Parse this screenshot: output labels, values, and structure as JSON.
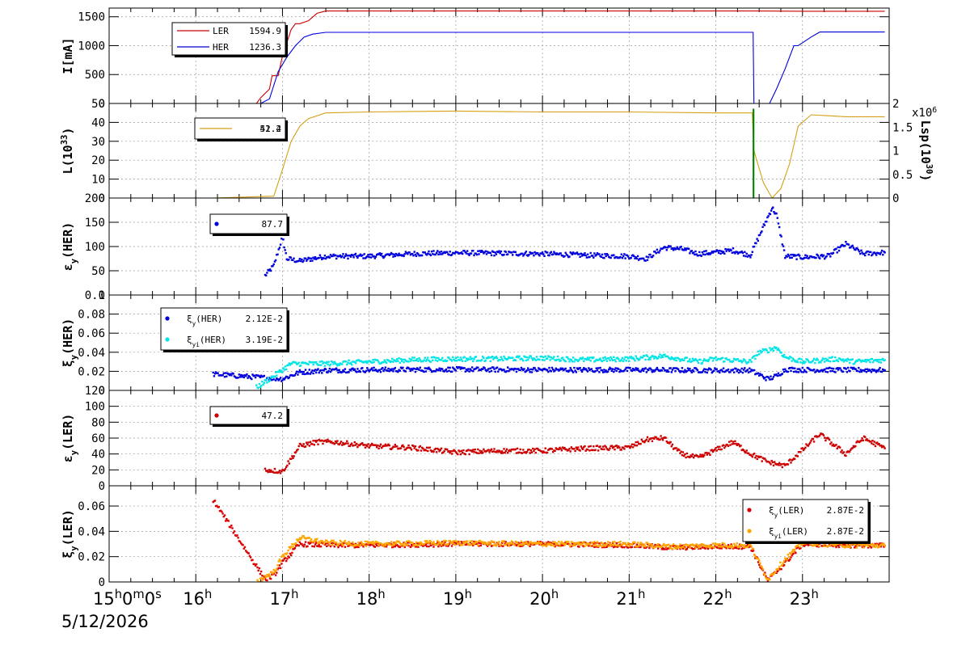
{
  "chart_data": {
    "type": "line",
    "time_axis": {
      "start": "15h0m0s",
      "date": "5/12/2026",
      "x_range_hours": [
        15,
        24
      ],
      "tick_labels": [
        {
          "hour": 15,
          "label": "15",
          "sup": "h",
          "tail": "0",
          "tail_sup": "m",
          "tail2": "0",
          "tail2_sup": "s"
        },
        {
          "hour": 16,
          "label": "16",
          "sup": "h"
        },
        {
          "hour": 17,
          "label": "17",
          "sup": "h"
        },
        {
          "hour": 18,
          "label": "18",
          "sup": "h"
        },
        {
          "hour": 19,
          "label": "19",
          "sup": "h"
        },
        {
          "hour": 20,
          "label": "20",
          "sup": "h"
        },
        {
          "hour": 21,
          "label": "21",
          "sup": "h"
        },
        {
          "hour": 22,
          "label": "22",
          "sup": "h"
        },
        {
          "hour": 23,
          "label": "23",
          "sup": "h"
        }
      ]
    },
    "panels": [
      {
        "id": "current",
        "ylabel": "I[mA]",
        "ylim": [
          0,
          1650
        ],
        "yticks": [
          0,
          500,
          1000,
          1500
        ],
        "legend": [
          {
            "name": "LER",
            "value": "1594.9",
            "color": "#cc0000",
            "marker": "line"
          },
          {
            "name": "HER",
            "value": "1236.3",
            "color": "#0000dd",
            "marker": "line"
          }
        ],
        "series": [
          {
            "name": "LER",
            "color": "#cc0000",
            "style": "line",
            "x": [
              15.0,
              16.7,
              16.75,
              16.85,
              16.88,
              16.95,
              17.0,
              17.05,
              17.1,
              17.15,
              17.2,
              17.3,
              17.4,
              17.5,
              19.0,
              21.0,
              22.45,
              23.0,
              23.95
            ],
            "y": [
              0,
              0,
              100,
              250,
              480,
              480,
              820,
              1050,
              1280,
              1380,
              1380,
              1430,
              1560,
              1600,
              1600,
              1600,
              1600,
              1595,
              1594.9
            ]
          },
          {
            "name": "HER",
            "color": "#0000dd",
            "style": "line",
            "x": [
              15.0,
              16.75,
              16.85,
              16.95,
              17.05,
              17.15,
              17.25,
              17.35,
              17.5,
              19.0,
              21.0,
              22.43,
              22.44,
              22.62,
              22.7,
              22.8,
              22.9,
              22.95,
              23.1,
              23.2,
              23.95
            ],
            "y": [
              0,
              0,
              80,
              550,
              800,
              1000,
              1150,
              1200,
              1230,
              1230,
              1230,
              1230,
              0,
              0,
              250,
              600,
              1000,
              1000,
              1150,
              1236,
              1236.3
            ]
          }
        ]
      },
      {
        "id": "luminosity",
        "ylabel": "L(10",
        "ylabel_sup": "33",
        "ylabel_tail": ")",
        "ylim": [
          0,
          50
        ],
        "yticks": [
          0,
          10,
          20,
          30,
          40,
          50
        ],
        "y2label": "Lsp(10",
        "y2label_sup": "30",
        "y2label_tail": ")",
        "y2lim": [
          0,
          2
        ],
        "y2ticks": [
          "0",
          "0.5",
          "1",
          "1.5",
          "2"
        ],
        "y2multiplier": "x10",
        "y2multiplier_sup": "6",
        "legend": [
          {
            "name": "",
            "value": "51.4",
            "color": "#d4a017",
            "marker": "line"
          },
          {
            "name": "",
            "value": "42.2",
            "color": "#d4a017",
            "marker": "none"
          }
        ],
        "series": [
          {
            "name": "",
            "color": "#d4a017",
            "style": "line",
            "x": [
              16.2,
              16.9,
              17.0,
              17.1,
              17.2,
              17.3,
              17.5,
              18.0,
              19.0,
              20.0,
              21.0,
              22.0,
              22.42,
              22.44,
              22.55,
              22.65,
              22.75,
              22.85,
              22.95,
              23.1,
              23.5,
              23.95
            ],
            "y": [
              0,
              1,
              15,
              30,
              38,
              42,
              45,
              45.5,
              46,
              45.5,
              45.5,
              45,
              45,
              25,
              8,
              0,
              5,
              18,
              38,
              44,
              43,
              43
            ]
          },
          {
            "name": "",
            "color": "#008000",
            "style": "line",
            "x": [
              22.43,
              22.43,
              22.44,
              22.44
            ],
            "y": [
              0,
              47,
              47,
              0
            ]
          }
        ]
      },
      {
        "id": "emittance_her",
        "ylabel": "ε",
        "ylabel_sub": "y",
        "ylabel_tail": "(HER)",
        "ylim": [
          0,
          200
        ],
        "yticks": [
          0,
          50,
          100,
          150,
          200
        ],
        "legend": [
          {
            "name": "",
            "value": "87.7",
            "color": "#0000dd",
            "marker": "dot"
          }
        ],
        "series": [
          {
            "name": "",
            "color": "#0000dd",
            "style": "scatter",
            "x": [
              16.8,
              16.9,
              17.0,
              17.05,
              17.2,
              17.5,
              18.0,
              18.5,
              19.0,
              19.5,
              20.0,
              20.5,
              21.0,
              21.2,
              21.4,
              21.6,
              21.8,
              22.0,
              22.2,
              22.4,
              22.65,
              22.7,
              22.8,
              23.0,
              23.3,
              23.5,
              23.7,
              23.95
            ],
            "y": [
              40,
              60,
              120,
              75,
              70,
              80,
              80,
              85,
              87,
              86,
              85,
              82,
              80,
              75,
              98,
              95,
              85,
              88,
              92,
              82,
              180,
              165,
              80,
              78,
              80,
              105,
              85,
              87.7
            ]
          }
        ]
      },
      {
        "id": "tune_shift_her",
        "ylabel": "ξ",
        "ylabel_sub": "y",
        "ylabel_tail": "(HER)",
        "ylim": [
          0,
          0.1
        ],
        "yticks": [
          "0",
          "0.02",
          "0.04",
          "0.06",
          "0.08",
          "0.1"
        ],
        "legend": [
          {
            "name": "ξ",
            "name_sub": "y",
            "name_tail": "(HER)",
            "value": "2.12E-2",
            "color": "#0000dd",
            "marker": "dot"
          },
          {
            "name": "ξ",
            "name_sub": "yi",
            "name_tail": "(HER)",
            "value": "3.19E-2",
            "color": "#00e5e5",
            "marker": "dot"
          }
        ],
        "series": [
          {
            "name": "ξy(HER)",
            "color": "#0000dd",
            "style": "scatter",
            "x": [
              16.2,
              17.0,
              17.2,
              17.5,
              18.0,
              19.0,
              20.0,
              21.0,
              22.0,
              22.4,
              22.6,
              22.7,
              22.8,
              23.0,
              23.95
            ],
            "y": [
              0.017,
              0.012,
              0.019,
              0.021,
              0.0215,
              0.022,
              0.0215,
              0.0215,
              0.021,
              0.021,
              0.012,
              0.015,
              0.022,
              0.0215,
              0.0212
            ]
          },
          {
            "name": "ξyi(HER)",
            "color": "#00e5e5",
            "style": "scatter",
            "x": [
              16.7,
              16.9,
              17.1,
              17.5,
              18.0,
              18.5,
              19.0,
              19.5,
              20.0,
              20.5,
              21.0,
              21.4,
              21.8,
              22.0,
              22.4,
              22.5,
              22.6,
              22.7,
              22.8,
              23.0,
              23.4,
              23.6,
              23.95
            ],
            "y": [
              0.003,
              0.015,
              0.028,
              0.028,
              0.03,
              0.032,
              0.033,
              0.033,
              0.034,
              0.032,
              0.033,
              0.036,
              0.03,
              0.033,
              0.03,
              0.04,
              0.042,
              0.045,
              0.035,
              0.03,
              0.033,
              0.03,
              0.0319
            ]
          }
        ]
      },
      {
        "id": "emittance_ler",
        "ylabel": "ε",
        "ylabel_sub": "y",
        "ylabel_tail": "(LER)",
        "ylim": [
          0,
          120
        ],
        "yticks": [
          0,
          20,
          40,
          60,
          80,
          100,
          120
        ],
        "legend": [
          {
            "name": "",
            "value": "47.2",
            "color": "#cc0000",
            "marker": "dot"
          }
        ],
        "series": [
          {
            "name": "",
            "color": "#cc0000",
            "style": "scatter",
            "x": [
              16.8,
              17.0,
              17.2,
              17.4,
              17.6,
              18.0,
              18.5,
              19.0,
              19.5,
              20.0,
              20.5,
              21.0,
              21.2,
              21.4,
              21.6,
              21.8,
              22.0,
              22.2,
              22.4,
              22.6,
              22.8,
              23.0,
              23.2,
              23.5,
              23.7,
              23.95
            ],
            "y": [
              20,
              18,
              50,
              55,
              55,
              50,
              48,
              42,
              44,
              44,
              47,
              48,
              58,
              60,
              40,
              35,
              45,
              55,
              40,
              30,
              25,
              45,
              65,
              40,
              60,
              47.2
            ]
          }
        ]
      },
      {
        "id": "tune_shift_ler",
        "ylabel": "ξ",
        "ylabel_sub": "y",
        "ylabel_tail": "(LER)",
        "ylim": [
          0,
          0.076
        ],
        "yticks": [
          "0",
          "0.02",
          "0.04",
          "0.06"
        ],
        "legend": [
          {
            "name": "ξ",
            "name_sub": "y",
            "name_tail": "(LER)",
            "value": "2.87E-2",
            "color": "#dd0000",
            "marker": "dot"
          },
          {
            "name": "ξ",
            "name_sub": "yi",
            "name_tail": "(LER)",
            "value": "2.87E-2",
            "color": "#ffa500",
            "marker": "dot"
          }
        ],
        "series": [
          {
            "name": "ξy(LER)",
            "color": "#dd0000",
            "style": "scatter",
            "x": [
              16.2,
              16.8,
              16.9,
              17.0,
              17.2,
              17.5,
              18.0,
              19.0,
              20.0,
              21.0,
              21.5,
              22.0,
              22.4,
              22.6,
              22.8,
              23.0,
              23.5,
              23.95
            ],
            "y": [
              0.065,
              0.002,
              0.005,
              0.015,
              0.03,
              0.029,
              0.029,
              0.03,
              0.03,
              0.029,
              0.027,
              0.028,
              0.028,
              0.001,
              0.015,
              0.03,
              0.029,
              0.0287
            ]
          },
          {
            "name": "ξyi(LER)",
            "color": "#ffa500",
            "style": "scatter",
            "x": [
              16.7,
              16.9,
              17.0,
              17.2,
              17.5,
              18.0,
              19.0,
              20.0,
              21.0,
              21.5,
              22.0,
              22.4,
              22.6,
              22.8,
              23.0,
              23.5,
              23.95
            ],
            "y": [
              0.0,
              0.008,
              0.02,
              0.035,
              0.031,
              0.03,
              0.031,
              0.03,
              0.03,
              0.028,
              0.029,
              0.029,
              0.002,
              0.018,
              0.031,
              0.029,
              0.0287
            ]
          }
        ]
      }
    ]
  }
}
